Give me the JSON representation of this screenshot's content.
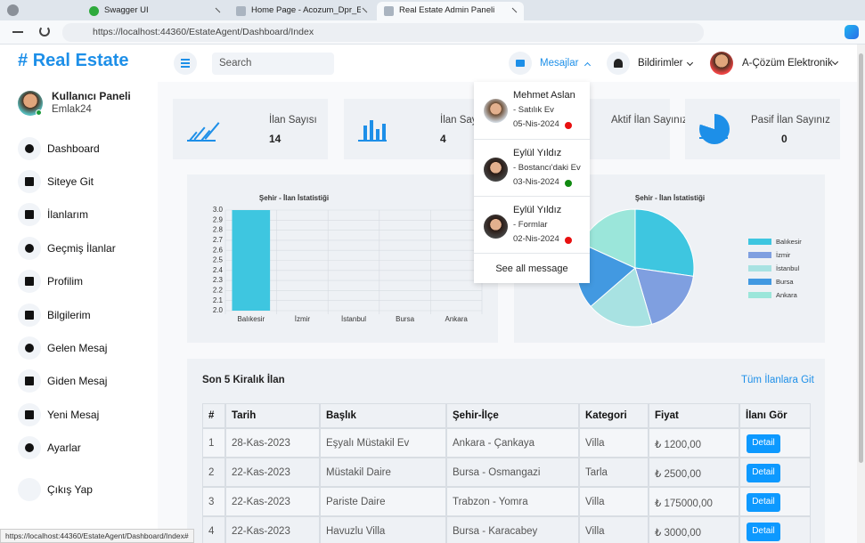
{
  "browser": {
    "tabs": [
      "Swagger UI",
      "Home Page - Acozum_Dpr_Est",
      "Real Estate Admin Paneli"
    ],
    "url": "https://localhost:44360/EstateAgent/Dashboard/Index",
    "status": "https://localhost:44360/EstateAgent/Dashboard/Index#"
  },
  "brand": {
    "icon": "#",
    "name": "Real Estate"
  },
  "topbar": {
    "search": "Search",
    "messages": "Mesajlar",
    "notifications": "Bildirimler",
    "user": "A-Çözüm Elektronik"
  },
  "sidebar": {
    "title": "Kullanıcı Paneli",
    "subtitle": "Emlak24",
    "menu": [
      "Dashboard",
      "Siteye Git",
      "İlanlarım",
      "Geçmiş İlanlar",
      "Profilim",
      "Bilgilerim",
      "Gelen Mesaj",
      "Giden Mesaj",
      "Yeni Mesaj",
      "Ayarlar",
      "Çıkış Yap"
    ]
  },
  "stats": [
    {
      "label": "İlan Sayısı",
      "value": 14
    },
    {
      "label": "İlan Sayısı",
      "value": 4
    },
    {
      "label": "Aktif İlan Sayınız"
    },
    {
      "label": "Pasif İlan Sayınız",
      "value": 0
    }
  ],
  "messages": {
    "items": [
      {
        "name": "Mehmet Aslan",
        "subject": "- Satılık Ev",
        "date": "05-Nis-2024",
        "status": "#e81010"
      },
      {
        "name": "Eylül Yıldız",
        "subject": "- Bostancı'daki Ev",
        "date": "03-Nis-2024",
        "status": "#118a11"
      },
      {
        "name": "Eylül Yıldız",
        "subject": "- Formlar",
        "date": "02-Nis-2024",
        "status": "#e81010"
      }
    ],
    "footer": "See all message"
  },
  "charts": [
    {
      "type": "bar",
      "title": "Şehir - İlan İstatistiği",
      "categories": [
        "Balıkesir",
        "İzmir",
        "İstanbul",
        "Bursa",
        "Ankara"
      ],
      "values": [
        3,
        2,
        2,
        2,
        2
      ],
      "color": "#3ec6e0",
      "ylim": [
        2,
        3
      ],
      "yticks": [
        {
          "value": 2,
          "label": "2.0"
        },
        {
          "value": 2.1,
          "label": "2.1"
        },
        {
          "value": 2.2,
          "label": "2.2"
        },
        {
          "value": 2.3,
          "label": "2.3"
        },
        {
          "value": 2.4,
          "label": "2.4"
        },
        {
          "value": 2.5,
          "label": "2.5"
        },
        {
          "value": 2.6,
          "label": "2.6"
        },
        {
          "value": 2.7,
          "label": "2.7"
        },
        {
          "value": 2.8,
          "label": "2.8"
        },
        {
          "value": 2.9,
          "label": "2.9"
        },
        {
          "value": 3,
          "label": "3.0"
        }
      ],
      "grid": true
    },
    {
      "type": "pie",
      "title": "Şehir - İlan İstatistiği",
      "categories": [
        "Balıkesir",
        "İzmir",
        "İstanbul",
        "Bursa",
        "Ankara"
      ],
      "values": [
        3,
        2,
        2,
        2,
        2
      ],
      "colors": [
        "#3ec6e0",
        "#7f9fe0",
        "#a8e2e2",
        "#4299e1",
        "#9be6da"
      ]
    }
  ],
  "table": {
    "title": "Son 5 Kiralık İlan",
    "link": "Tüm İlanlara Git",
    "headers": [
      "#",
      "Tarih",
      "Başlık",
      "Şehir-İlçe",
      "Kategori",
      "Fiyat",
      "İlanı Gör"
    ],
    "rows": [
      [
        1,
        "28-Kas-2023",
        "Eşyalı Müstakil Ev",
        "Ankara - Çankaya",
        "Villa",
        "₺ 1200,00"
      ],
      [
        2,
        "22-Kas-2023",
        "Müstakil Daire",
        "Bursa - Osmangazi",
        "Tarla",
        "₺ 2500,00"
      ],
      [
        3,
        "22-Kas-2023",
        "Pariste Daire",
        "Trabzon - Yomra",
        "Villa",
        "₺ 175000,00"
      ],
      [
        4,
        "22-Kas-2023",
        "Havuzlu Villa",
        "Bursa - Karacabey",
        "Villa",
        "₺ 3000,00"
      ]
    ],
    "action": "Detail"
  }
}
